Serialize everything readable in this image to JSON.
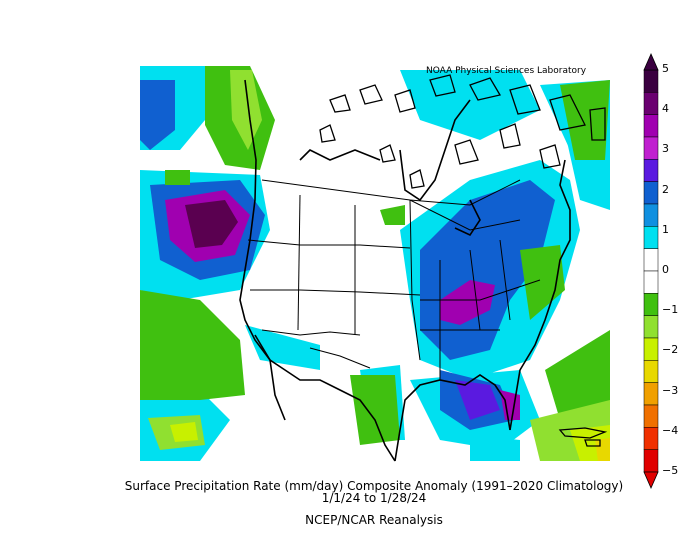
{
  "map": {
    "credit": "NOAA Physical Sciences Laboratory",
    "title": "Surface Precipitation Rate (mm/day) Composite Anomaly (1991–2020 Climatology)",
    "date_range": "1/1/24  to 1/28/24",
    "source": "NCEP/NCAR Reanalysis",
    "units": "mm/day"
  },
  "colorbar": {
    "tick_labels": [
      "5",
      "4",
      "3",
      "2",
      "1",
      "0",
      "−1",
      "−2",
      "−3",
      "−4",
      "−5"
    ],
    "colors": [
      "#3a0040",
      "#6a0070",
      "#a000b0",
      "#c020d0",
      "#5a1ae0",
      "#1060d0",
      "#1090e0",
      "#00e0f0",
      "#ffffff",
      "#ffffff",
      "#40c010",
      "#90e030",
      "#c8f000",
      "#e8d800",
      "#f0a000",
      "#f07000",
      "#f03000",
      "#e00000"
    ]
  },
  "colors": {
    "wet_strong": "#5a0050",
    "wet": "#1060d0",
    "wet_light": "#00e0f0",
    "dry_light": "#40c010",
    "dry": "#c8f000"
  }
}
